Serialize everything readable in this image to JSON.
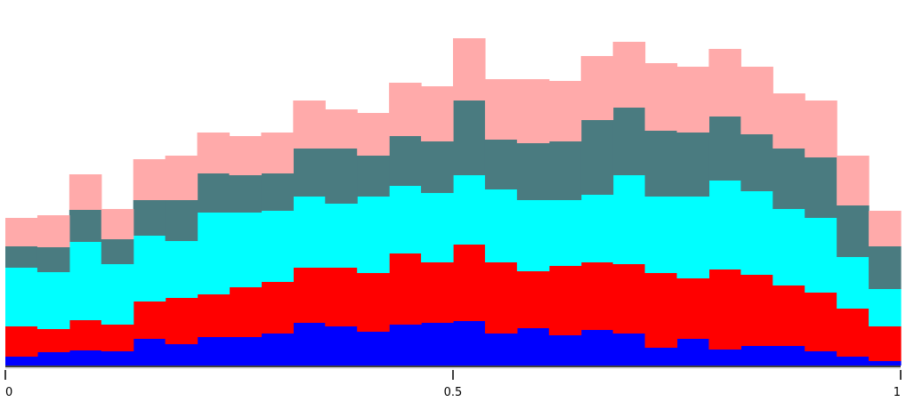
{
  "chart_data": {
    "type": "bar",
    "stacked": true,
    "bins": 28,
    "x_range": [
      0,
      1
    ],
    "x_ticks": [
      {
        "value": 0,
        "label": "0"
      },
      {
        "value": 0.5,
        "label": "0.5"
      },
      {
        "value": 1,
        "label": "1"
      }
    ],
    "y_range": [
      0,
      372
    ],
    "grid": false,
    "series": [
      {
        "color": "#0000ff",
        "values": [
          10,
          15,
          17,
          16,
          30,
          24,
          32,
          32,
          36,
          48,
          44,
          38,
          46,
          48,
          50,
          36,
          42,
          34,
          40,
          36,
          20,
          30,
          18,
          22,
          22,
          16,
          10,
          5
        ]
      },
      {
        "color": "#ff0000",
        "values": [
          34,
          26,
          34,
          30,
          42,
          52,
          48,
          56,
          58,
          62,
          66,
          66,
          80,
          68,
          86,
          80,
          64,
          78,
          76,
          78,
          84,
          68,
          90,
          80,
          68,
          66,
          54,
          39
        ]
      },
      {
        "color": "#00ffff",
        "values": [
          66,
          64,
          88,
          68,
          74,
          64,
          92,
          84,
          80,
          80,
          72,
          86,
          76,
          78,
          78,
          82,
          80,
          74,
          76,
          100,
          86,
          92,
          100,
          94,
          86,
          84,
          58,
          42
        ]
      },
      {
        "color": "#4a7b80",
        "values": [
          24,
          28,
          36,
          28,
          40,
          46,
          44,
          42,
          42,
          54,
          62,
          46,
          56,
          58,
          84,
          56,
          64,
          66,
          84,
          76,
          74,
          72,
          72,
          64,
          68,
          68,
          58,
          48
        ]
      },
      {
        "color": "#ffaaaa",
        "values": [
          32,
          36,
          40,
          34,
          46,
          50,
          46,
          44,
          46,
          54,
          44,
          48,
          60,
          62,
          70,
          68,
          72,
          68,
          72,
          74,
          76,
          74,
          76,
          76,
          62,
          64,
          56,
          40
        ]
      }
    ]
  }
}
